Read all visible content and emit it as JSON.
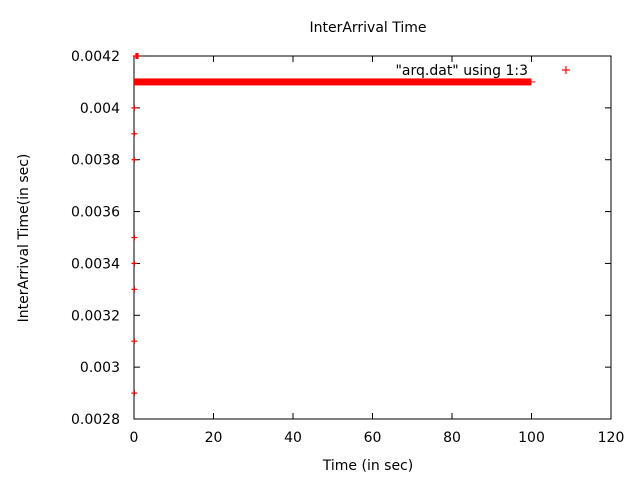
{
  "chart_data": {
    "type": "scatter",
    "title": "InterArrival Time",
    "xlabel": "Time (in sec)",
    "ylabel": "InterArrival Time(in sec)",
    "xlim": [
      0,
      120
    ],
    "ylim": [
      0.0028,
      0.0042
    ],
    "x_ticks": [
      0,
      20,
      40,
      60,
      80,
      100,
      120
    ],
    "y_ticks": [
      0.0028,
      0.003,
      0.0032,
      0.0034,
      0.0036,
      0.0038,
      0.004,
      0.0042
    ],
    "x_tick_labels": [
      "0",
      "20",
      "40",
      "60",
      "80",
      "100",
      "120"
    ],
    "y_tick_labels": [
      "0.0028",
      "0.003",
      "0.0032",
      "0.0034",
      "0.0036",
      "0.0038",
      "0.004",
      "0.0042"
    ],
    "grid": false,
    "legend": "top-right",
    "series": [
      {
        "name": "\"arq.dat\" using 1:3",
        "color": "#ff0000",
        "marker": "plus",
        "band": {
          "x_start": 0,
          "x_end": 100,
          "y": 0.0041
        },
        "points": [
          {
            "x": 0.5,
            "y": 0.0042
          },
          {
            "x": 0.8,
            "y": 0.0042
          },
          {
            "x": 1.0,
            "y": 0.0042
          },
          {
            "x": 0.1,
            "y": 0.004
          },
          {
            "x": 0.1,
            "y": 0.0039
          },
          {
            "x": 0.1,
            "y": 0.0038
          },
          {
            "x": 0.1,
            "y": 0.0035
          },
          {
            "x": 0.1,
            "y": 0.0034
          },
          {
            "x": 0.1,
            "y": 0.0033
          },
          {
            "x": 0.1,
            "y": 0.0031
          },
          {
            "x": 0.1,
            "y": 0.0029
          }
        ]
      }
    ]
  }
}
